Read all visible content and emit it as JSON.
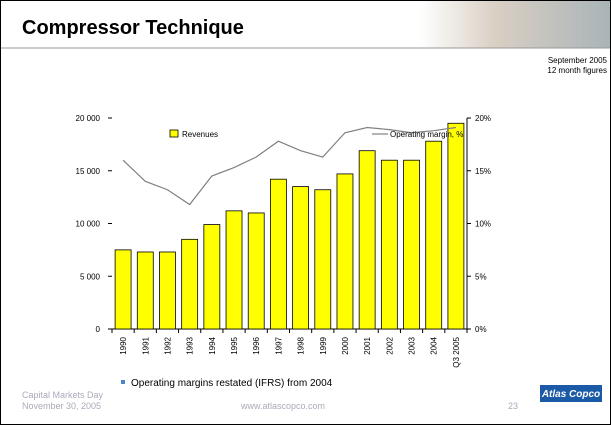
{
  "slide": {
    "title": "Compressor Technique",
    "period": "September 2005",
    "period_note": "12 month figures",
    "bullet": "Operating margins restated (IFRS) from 2004",
    "event": "Capital Markets Day",
    "event_date": "November 30, 2005",
    "url": "www.atlascopco.com",
    "page_number": "23",
    "logo": "Atlas Copco"
  },
  "chart_data": {
    "type": "bar",
    "categories": [
      "1990",
      "1991",
      "1992",
      "1993",
      "1994",
      "1995",
      "1996",
      "1997",
      "1998",
      "1999",
      "2000",
      "2001",
      "2002",
      "2003",
      "2004",
      "Q3 2005"
    ],
    "series": [
      {
        "name": "Revenues",
        "type": "bar",
        "color": "#ffff00",
        "values": [
          7500,
          7300,
          7300,
          8500,
          9900,
          11200,
          11000,
          14200,
          13500,
          13200,
          14700,
          16900,
          16000,
          16000,
          17800,
          19500
        ]
      },
      {
        "name": "Operating margin, %",
        "type": "line",
        "axis": "y2",
        "color": "#808080",
        "values": [
          16,
          14,
          13.2,
          11.8,
          14.5,
          15.3,
          16.3,
          17.8,
          16.9,
          16.3,
          18.6,
          19.1,
          18.9,
          18.6,
          18.8,
          19.1
        ]
      }
    ],
    "ylim": [
      0,
      20000
    ],
    "yticks": [
      0,
      {
        "value": 5000,
        "label": "5 000"
      },
      {
        "value": 10000,
        "label": "10 000"
      },
      {
        "value": 15000,
        "label": "15 000"
      },
      {
        "value": 20000,
        "label": "20 000"
      }
    ],
    "y2lim": [
      0,
      20
    ],
    "y2ticks": [
      {
        "value": 0,
        "label": "0%"
      },
      {
        "value": 5,
        "label": "5%"
      },
      {
        "value": 10,
        "label": "10%"
      },
      {
        "value": 15,
        "label": "15%"
      },
      {
        "value": 20,
        "label": "20%"
      }
    ],
    "grid": false,
    "legend": "top"
  }
}
